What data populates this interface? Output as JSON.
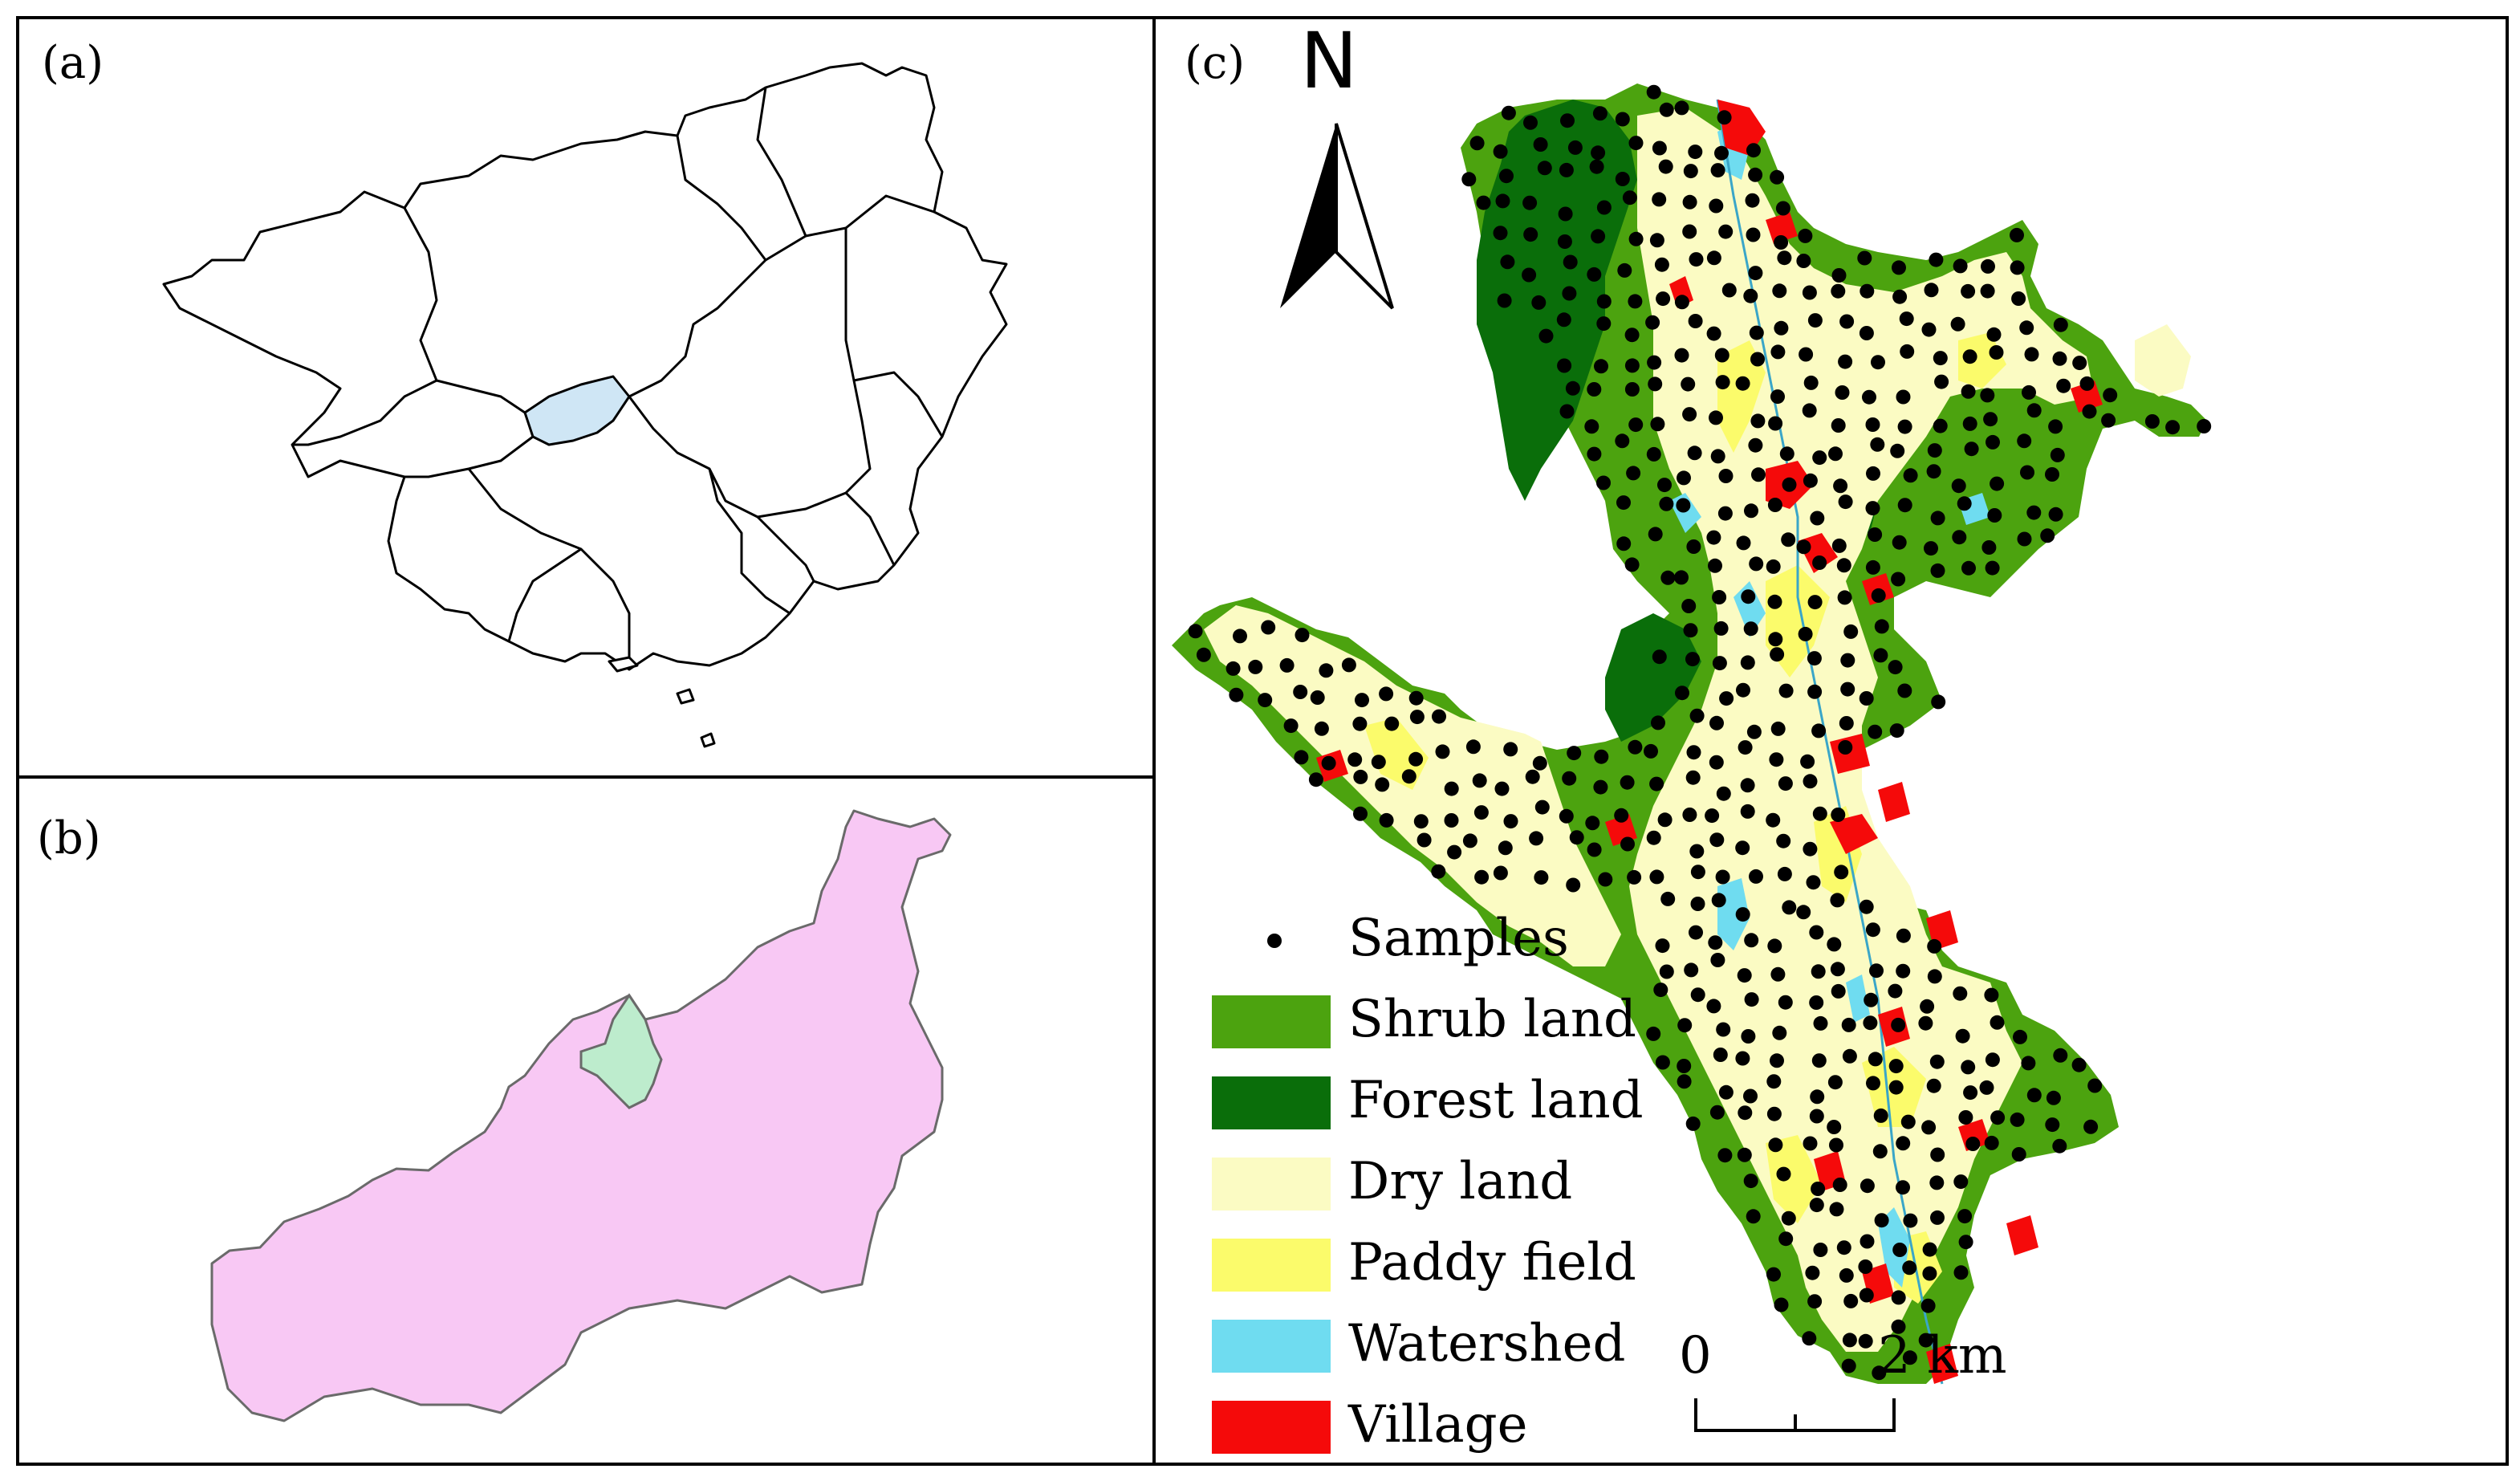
{
  "panels": {
    "a": {
      "label": "(a)"
    },
    "b": {
      "label": "(b)"
    },
    "c": {
      "label": "(c)"
    }
  },
  "north_arrow": {
    "label": "N"
  },
  "legend": [
    {
      "label": "Samples",
      "kind": "dot",
      "color": "#000000"
    },
    {
      "label": "Shrub land",
      "kind": "swatch",
      "color": "#4ca30f"
    },
    {
      "label": "Forest land",
      "kind": "swatch",
      "color": "#0a6e0a"
    },
    {
      "label": "Dry land",
      "kind": "swatch",
      "color": "#fbfbc3"
    },
    {
      "label": "Paddy field",
      "kind": "swatch",
      "color": "#fbfb6b"
    },
    {
      "label": "Watershed",
      "kind": "swatch",
      "color": "#6fdcf0"
    },
    {
      "label": "Village",
      "kind": "swatch",
      "color": "#f50a0a"
    }
  ],
  "scale_bar": {
    "start": "0",
    "end": "2 km"
  },
  "colors": {
    "highlight_region_a": "#cfe6f5",
    "study_county_b": "#f8c8f4",
    "highlight_region_b": "#bdeccd"
  }
}
